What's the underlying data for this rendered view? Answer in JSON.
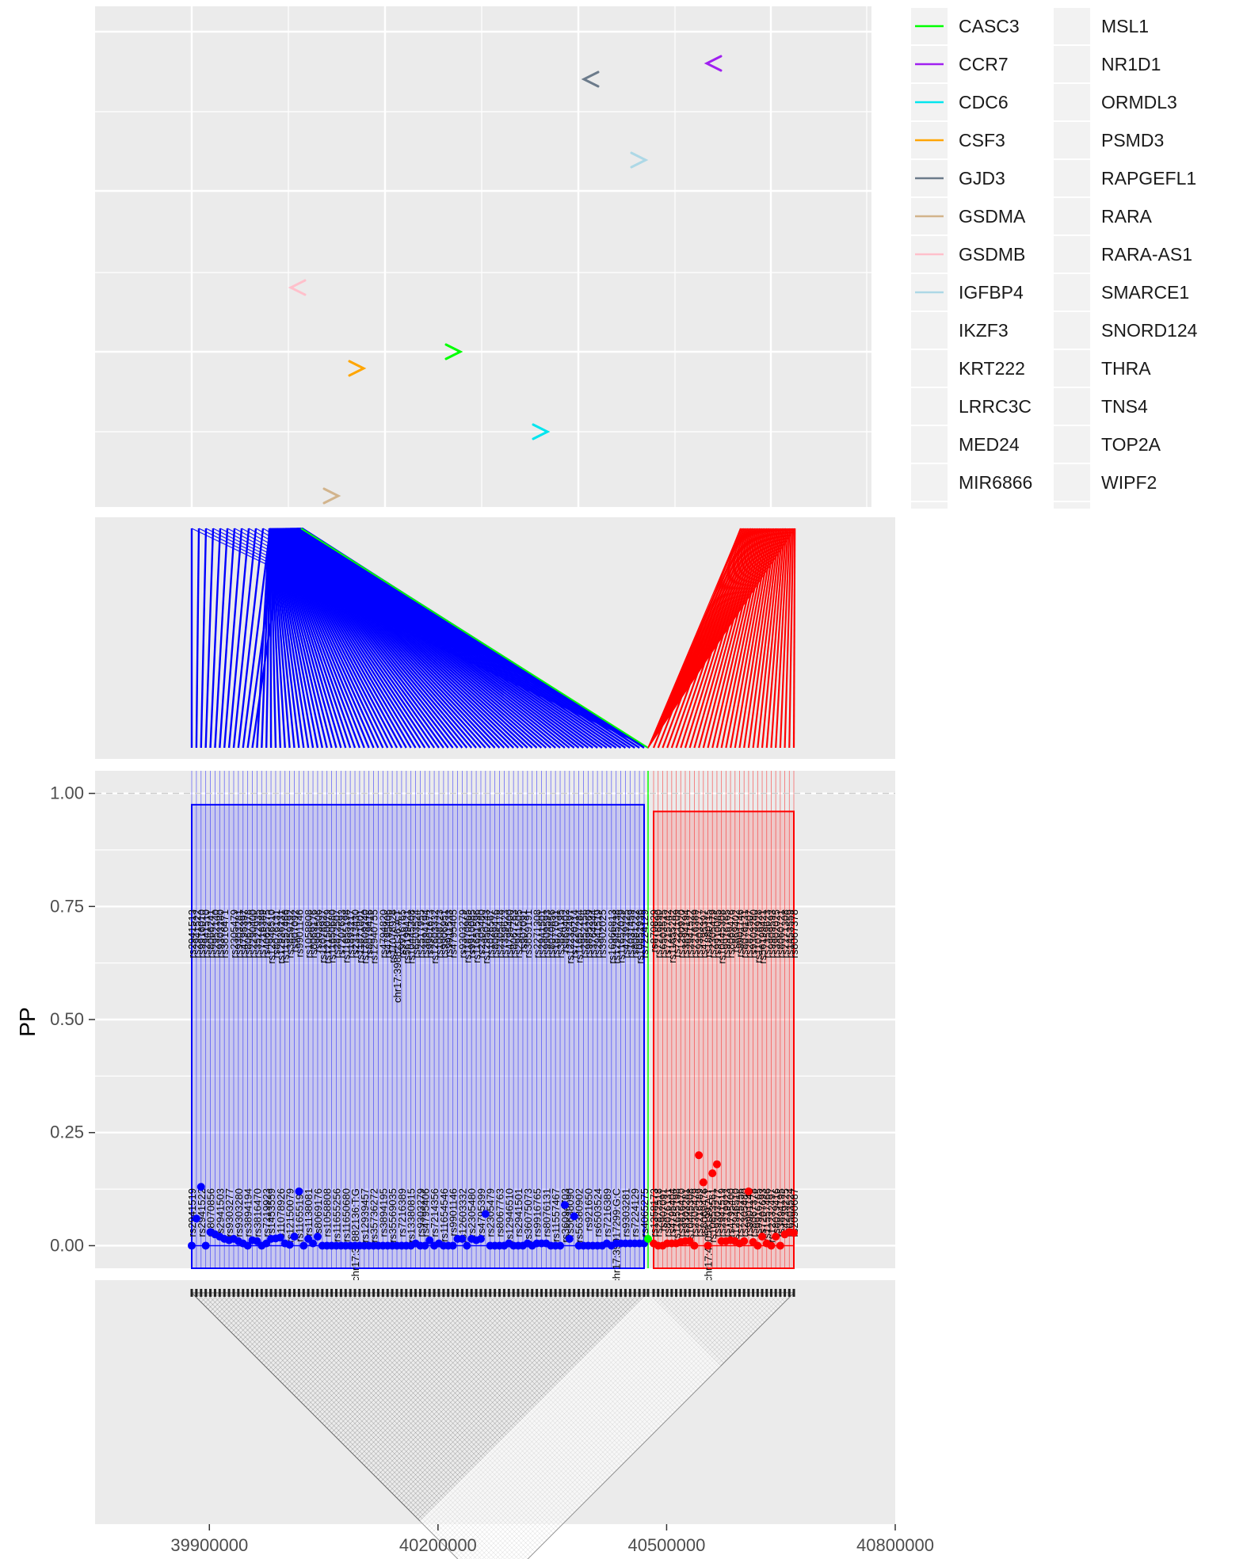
{
  "chart_data": [
    {
      "type": "gene-track",
      "x_range": [
        39750000,
        40650000
      ],
      "legend_placement": "right",
      "genes": [
        {
          "name": "CASC3",
          "color": "#00ff00",
          "x": 40164000,
          "track": 5,
          "strand": "+"
        },
        {
          "name": "CCR7",
          "color": "#a020f0",
          "x": 40537000,
          "track": 1,
          "strand": "-"
        },
        {
          "name": "CDC6",
          "color": "#00e5ee",
          "x": 40286000,
          "track": 6,
          "strand": "+"
        },
        {
          "name": "CSF3",
          "color": "#ffa500",
          "x": 40015000,
          "track": 5.5,
          "strand": "+"
        },
        {
          "name": "GJD3",
          "color": "#6c7b8b",
          "x": 40369000,
          "track": 1.3,
          "strand": "-"
        },
        {
          "name": "GSDMA",
          "color": "#d2b48c",
          "x": 39963000,
          "track": 7,
          "strand": "+"
        },
        {
          "name": "GSDMB",
          "color": "#ffc0cb",
          "x": 39907000,
          "track": 4.2,
          "strand": "-"
        },
        {
          "name": "IGFBP4",
          "color": "#add8e6",
          "x": 40439000,
          "track": 2.1,
          "strand": "+"
        },
        {
          "name": "IKZF3",
          "color": null
        },
        {
          "name": "KRT222",
          "color": null
        },
        {
          "name": "LRRC3C",
          "color": null
        },
        {
          "name": "MED24",
          "color": null
        },
        {
          "name": "MIR6866",
          "color": null
        },
        {
          "name": "MSL1",
          "color": null
        },
        {
          "name": "NR1D1",
          "color": null
        },
        {
          "name": "ORMDL3",
          "color": null
        },
        {
          "name": "PSMD3",
          "color": null
        },
        {
          "name": "RAPGEFL1",
          "color": null
        },
        {
          "name": "RARA",
          "color": null
        },
        {
          "name": "RARA-AS1",
          "color": null
        },
        {
          "name": "SMARCE1",
          "color": null
        },
        {
          "name": "SNORD124",
          "color": null
        },
        {
          "name": "THRA",
          "color": null
        },
        {
          "name": "TNS4",
          "color": null
        },
        {
          "name": "TOP2A",
          "color": null
        },
        {
          "name": "WIPF2",
          "color": null
        }
      ]
    },
    {
      "type": "link-lines",
      "note_colors": {
        "blue": "#0000ff",
        "red": "#ff0000",
        "green": "#00ff00"
      }
    },
    {
      "type": "scatter",
      "ylabel": "PP",
      "ylim": [
        -0.05,
        1.05
      ],
      "y_ticks": [
        "0.00",
        "0.25",
        "0.50",
        "0.75",
        "1.00"
      ],
      "reference_line": 1.0,
      "series": [
        {
          "color": "#0000ff",
          "credible_set_pp": 0.975
        },
        {
          "color": "#ff0000",
          "credible_set_pp": 0.96
        },
        {
          "color": "#00ff00"
        }
      ],
      "blue_pp": [
        0.0,
        0.06,
        0.13,
        0.0,
        0.03,
        0.025,
        0.02,
        0.015,
        0.012,
        0.015,
        0.01,
        0.005,
        0.0,
        0.012,
        0.01,
        0.0,
        0.005,
        0.015,
        0.016,
        0.018,
        0.005,
        0.002,
        0.02,
        0.12,
        0.0,
        0.015,
        0.005,
        0.02,
        0.0,
        0.0,
        0.0,
        0.0,
        0.0,
        0.0,
        0.0,
        0.0,
        0.0,
        0.0,
        0.0,
        0.0,
        0.0,
        0.0,
        0.0,
        0.0,
        0.0,
        0.0,
        0.0,
        0.0,
        0.005,
        0.0,
        0.0,
        0.012,
        0.0,
        0.005,
        0.0,
        0.0,
        0.0,
        0.015,
        0.015,
        0.0,
        0.015,
        0.012,
        0.015,
        0.07,
        0.0,
        0.0,
        0.0,
        0.0,
        0.005,
        0.0,
        0.0,
        0.0,
        0.005,
        0.0,
        0.005,
        0.005,
        0.005,
        0.0,
        0.0,
        0.0,
        0.09,
        0.015,
        0.065,
        0.0,
        0.0,
        0.0,
        0.0,
        0.0,
        0.0,
        0.005,
        0.0,
        0.005,
        0.005,
        0.005,
        0.005,
        0.005,
        0.005,
        0.005
      ],
      "red_pp": [
        0.005,
        0.0,
        0.0,
        0.005,
        0.005,
        0.005,
        0.008,
        0.01,
        0.01,
        0.0,
        0.2,
        0.14,
        0.0,
        0.16,
        0.18,
        0.01,
        0.01,
        0.012,
        0.01,
        0.005,
        0.01,
        0.12,
        0.008,
        0.0,
        0.02,
        0.005,
        0.0,
        0.02,
        0.0,
        0.025,
        0.03,
        0.028
      ],
      "green_pp": [
        0.015
      ],
      "labels_top_blue": [
        "rs2941513",
        "rs2941522",
        "rs9916010",
        "rs2941510",
        "rs8066241",
        "rs2952140",
        "rs9303280",
        "rs3816471",
        "rs2305479",
        "rs9303281",
        "rs4795397",
        "rs8067378",
        "rs2290400",
        "rs3522935",
        "rs7216389",
        "rs4065275",
        "rs12946510",
        "rs8076131",
        "rs12936231",
        "rs11557466",
        "rs3859192",
        "rs907092",
        "rs9901146",
        "rs1058808",
        "rs8069176",
        "rs903506",
        "rs11078927",
        "rs12150079",
        "rs11650680",
        "rs2872507",
        "rs7207693",
        "rs11655198",
        "rs1893217",
        "rs2313430",
        "rs11871801",
        "rs17609240",
        "rs8079416",
        "rs12940755",
        "rs4794820",
        "rs4795406",
        "rs11078928",
        "chr17:39882136:A:T",
        "rs9916765",
        "rs56199421",
        "rs10445308",
        "rs6503524",
        "rs2517955",
        "rs3894194",
        "rs9901673",
        "rs12603332",
        "rs1008723",
        "rs9906951",
        "rs9911533",
        "rs4795405",
        "rs9303279",
        "rs11870965",
        "rs9910085",
        "rs11651596",
        "rs2305480",
        "rs12950743",
        "rs1026567",
        "rs8069476",
        "rs2305478",
        "rs7359623",
        "rs4795400",
        "rs8067763",
        "rs2941505",
        "rs907091",
        "rs3859191",
        "rs2271308",
        "rs2941501",
        "rs9909593",
        "rs8070856",
        "rs1877031",
        "rs3894195",
        "rs869402",
        "rs12232497",
        "rs7220214",
        "rs11657284",
        "rs2952156",
        "rs9895269",
        "rs3764344",
        "rs2941519",
        "rs3902025",
        "rs16966813",
        "rs12945238",
        "rs11652029",
        "rs4239225",
        "rs1031459",
        "rs8081222",
        "rs10852936",
        "rs7224129"
      ],
      "labels_bottom_blue": [
        "rs2941519",
        "rs2941522",
        "rs8070856",
        "rs2941503",
        "rs9303277",
        "rs9303280",
        "rs3894194",
        "rs3816470",
        "rs7219923",
        "rs1453559",
        "rs11078926",
        "rs12150079",
        "rs11655198",
        "rs1138081",
        "rs8069176",
        "rs1058808",
        "rs11655256",
        "rs11650680",
        "chr17:39882136:T:G",
        "rs12939457",
        "rs35736272",
        "rs3894195",
        "rs35569035",
        "rs7216389",
        "rs13380815",
        "rs9303279",
        "rs4795406",
        "rs7214356",
        "rs11654546",
        "rs9901146",
        "rs12603332",
        "rs2305480",
        "rs4795399",
        "rs2305479",
        "rs8067763",
        "rs12946510",
        "rs2941501",
        "rs36075073",
        "rs9916765",
        "rs8076131",
        "rs11557467",
        "rs36094703",
        "rs5638090",
        "rs56380902",
        "rs921650",
        "rs6503524",
        "rs7216389",
        "chr17:39917299:G:C",
        "rs9303281",
        "rs7224129",
        "rs4065275"
      ],
      "labels_top_red": [
        "rs870829",
        "rs7216890",
        "rs6503525",
        "rs7215742",
        "rs11655282",
        "rs7221109",
        "rs1290920",
        "rs3894194",
        "rs2941522",
        "rs7216389",
        "rs9303277",
        "rs4795397",
        "rs1880115",
        "rs2305479",
        "rs9910085",
        "rs10445308",
        "rs9916765",
        "rs8069476",
        "rs869402",
        "rs9901146",
        "rs8076131",
        "rs2872507",
        "rs9303280",
        "rs11078928",
        "rs56199421",
        "rs7359623",
        "rs9909593",
        "rs3902025",
        "rs8060721",
        "rs2271308",
        "rs1453559",
        "rs8067378"
      ],
      "labels_bottom_red": [
        "rs1358173",
        "rs2872518",
        "rs907091",
        "rs8076131",
        "rs4795404",
        "rs11655198",
        "rs3816470",
        "rs9303281",
        "rs10445308",
        "rs2305479",
        "rs7216389",
        "rs8069476",
        "chr17:40058199:A:T",
        "rs10853561",
        "rs9303277",
        "rs2941519",
        "rs7219923",
        "rs4795400",
        "rs12946510",
        "rs7225256",
        "rs2305480",
        "rs9901146",
        "rs8067378",
        "rs9916765",
        "rs7207693",
        "rs11557466",
        "rs12232497",
        "rs8079416",
        "rs3894195",
        "rs4239225",
        "rs6503524",
        "rs2090687"
      ]
    },
    {
      "type": "ld-heatmap",
      "x_ticks": [
        "39900000",
        "40200000",
        "40500000",
        "40800000"
      ],
      "x_tick_values": [
        39900000,
        40200000,
        40500000,
        40800000
      ],
      "x_range": [
        39750000,
        40800000
      ]
    }
  ]
}
